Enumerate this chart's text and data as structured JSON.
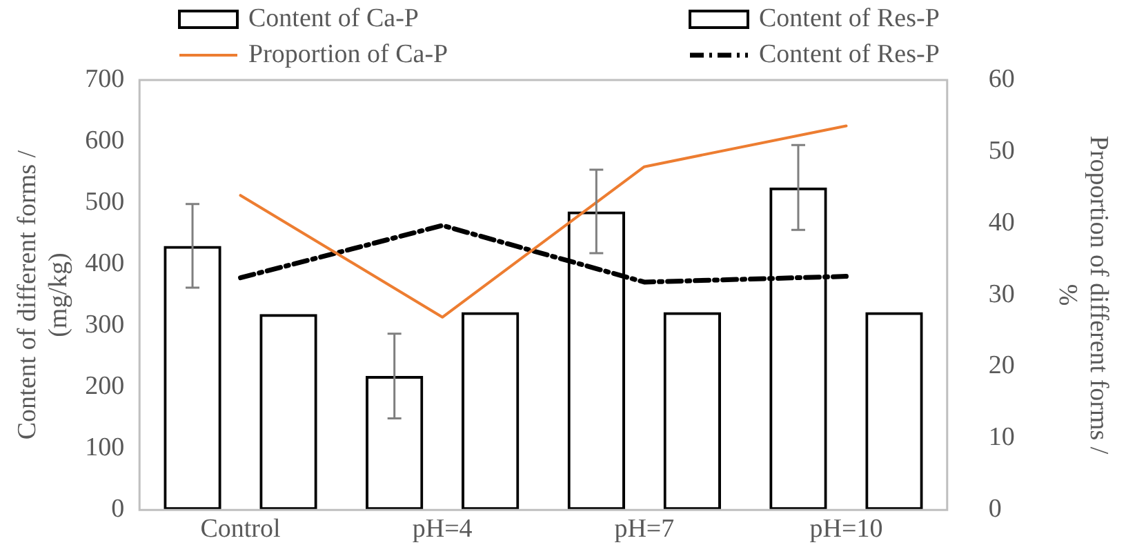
{
  "chart_data": {
    "type": "bar",
    "categories": [
      "Control",
      "pH=4",
      "pH=7",
      "pH=10"
    ],
    "ylabel": "Content of different forms /\n(mg/kg)",
    "y2label": "Proportion of different forms /\n%",
    "ylim": [
      0,
      700
    ],
    "yticks": [
      0,
      100,
      200,
      300,
      400,
      500,
      600,
      700
    ],
    "y2lim": [
      0,
      60
    ],
    "y2ticks": [
      0,
      10,
      20,
      30,
      40,
      50,
      60
    ],
    "grid": false,
    "legend": "top",
    "series": [
      {
        "name": "Content of Ca-P",
        "type": "bar",
        "color": "#000000",
        "values": [
          430,
          218,
          486,
          525
        ],
        "errors": [
          68,
          69,
          68,
          69
        ]
      },
      {
        "name": "Content of Res-P",
        "type": "bar",
        "color": "#000000",
        "values": [
          319,
          322,
          322,
          322
        ]
      },
      {
        "name": "Proportion of Ca-P",
        "type": "line",
        "axis": "y2",
        "color": "#ed7d31",
        "line_style": "solid",
        "marker": "none",
        "values": [
          43.9,
          26.9,
          47.9,
          53.6
        ]
      },
      {
        "name": "Content of Res-P",
        "type": "line",
        "axis": "y2",
        "color": "#000000",
        "line_style": "dashed",
        "marker": "none",
        "values": [
          32.4,
          39.7,
          31.8,
          32.6
        ]
      }
    ]
  }
}
